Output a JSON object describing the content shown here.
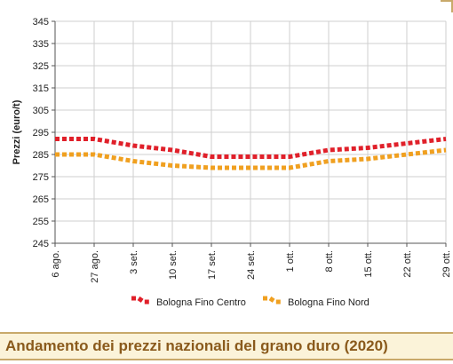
{
  "chart_data": {
    "type": "line",
    "title": "",
    "xlabel": "",
    "ylabel": "Prezzi (euro/t)",
    "ylim": [
      245,
      345
    ],
    "yticks": [
      245,
      255,
      265,
      275,
      285,
      295,
      305,
      315,
      325,
      335,
      345
    ],
    "categories": [
      "6 ago.",
      "27 ago.",
      "3 set.",
      "10 set.",
      "17 set.",
      "24 set.",
      "1 ott.",
      "8 ott.",
      "15 ott.",
      "22 ott.",
      "29 ott."
    ],
    "series": [
      {
        "name": "Bologna Fino Centro",
        "color": "#e0202a",
        "values": [
          292,
          292,
          289,
          287,
          284,
          284,
          284,
          287,
          288,
          290,
          292
        ]
      },
      {
        "name": "Bologna Fino Nord",
        "color": "#f0a020",
        "values": [
          285,
          285,
          282,
          280,
          279,
          279,
          279,
          282,
          283,
          285,
          287
        ]
      }
    ],
    "grid": true,
    "legend": "bottom"
  },
  "caption": "Andamento dei prezzi nazionali del grano duro (2020)",
  "colors": {
    "accent": "#c8a96a",
    "caption_bg": "#fbf3d9",
    "caption_text": "#8a5a1c"
  }
}
